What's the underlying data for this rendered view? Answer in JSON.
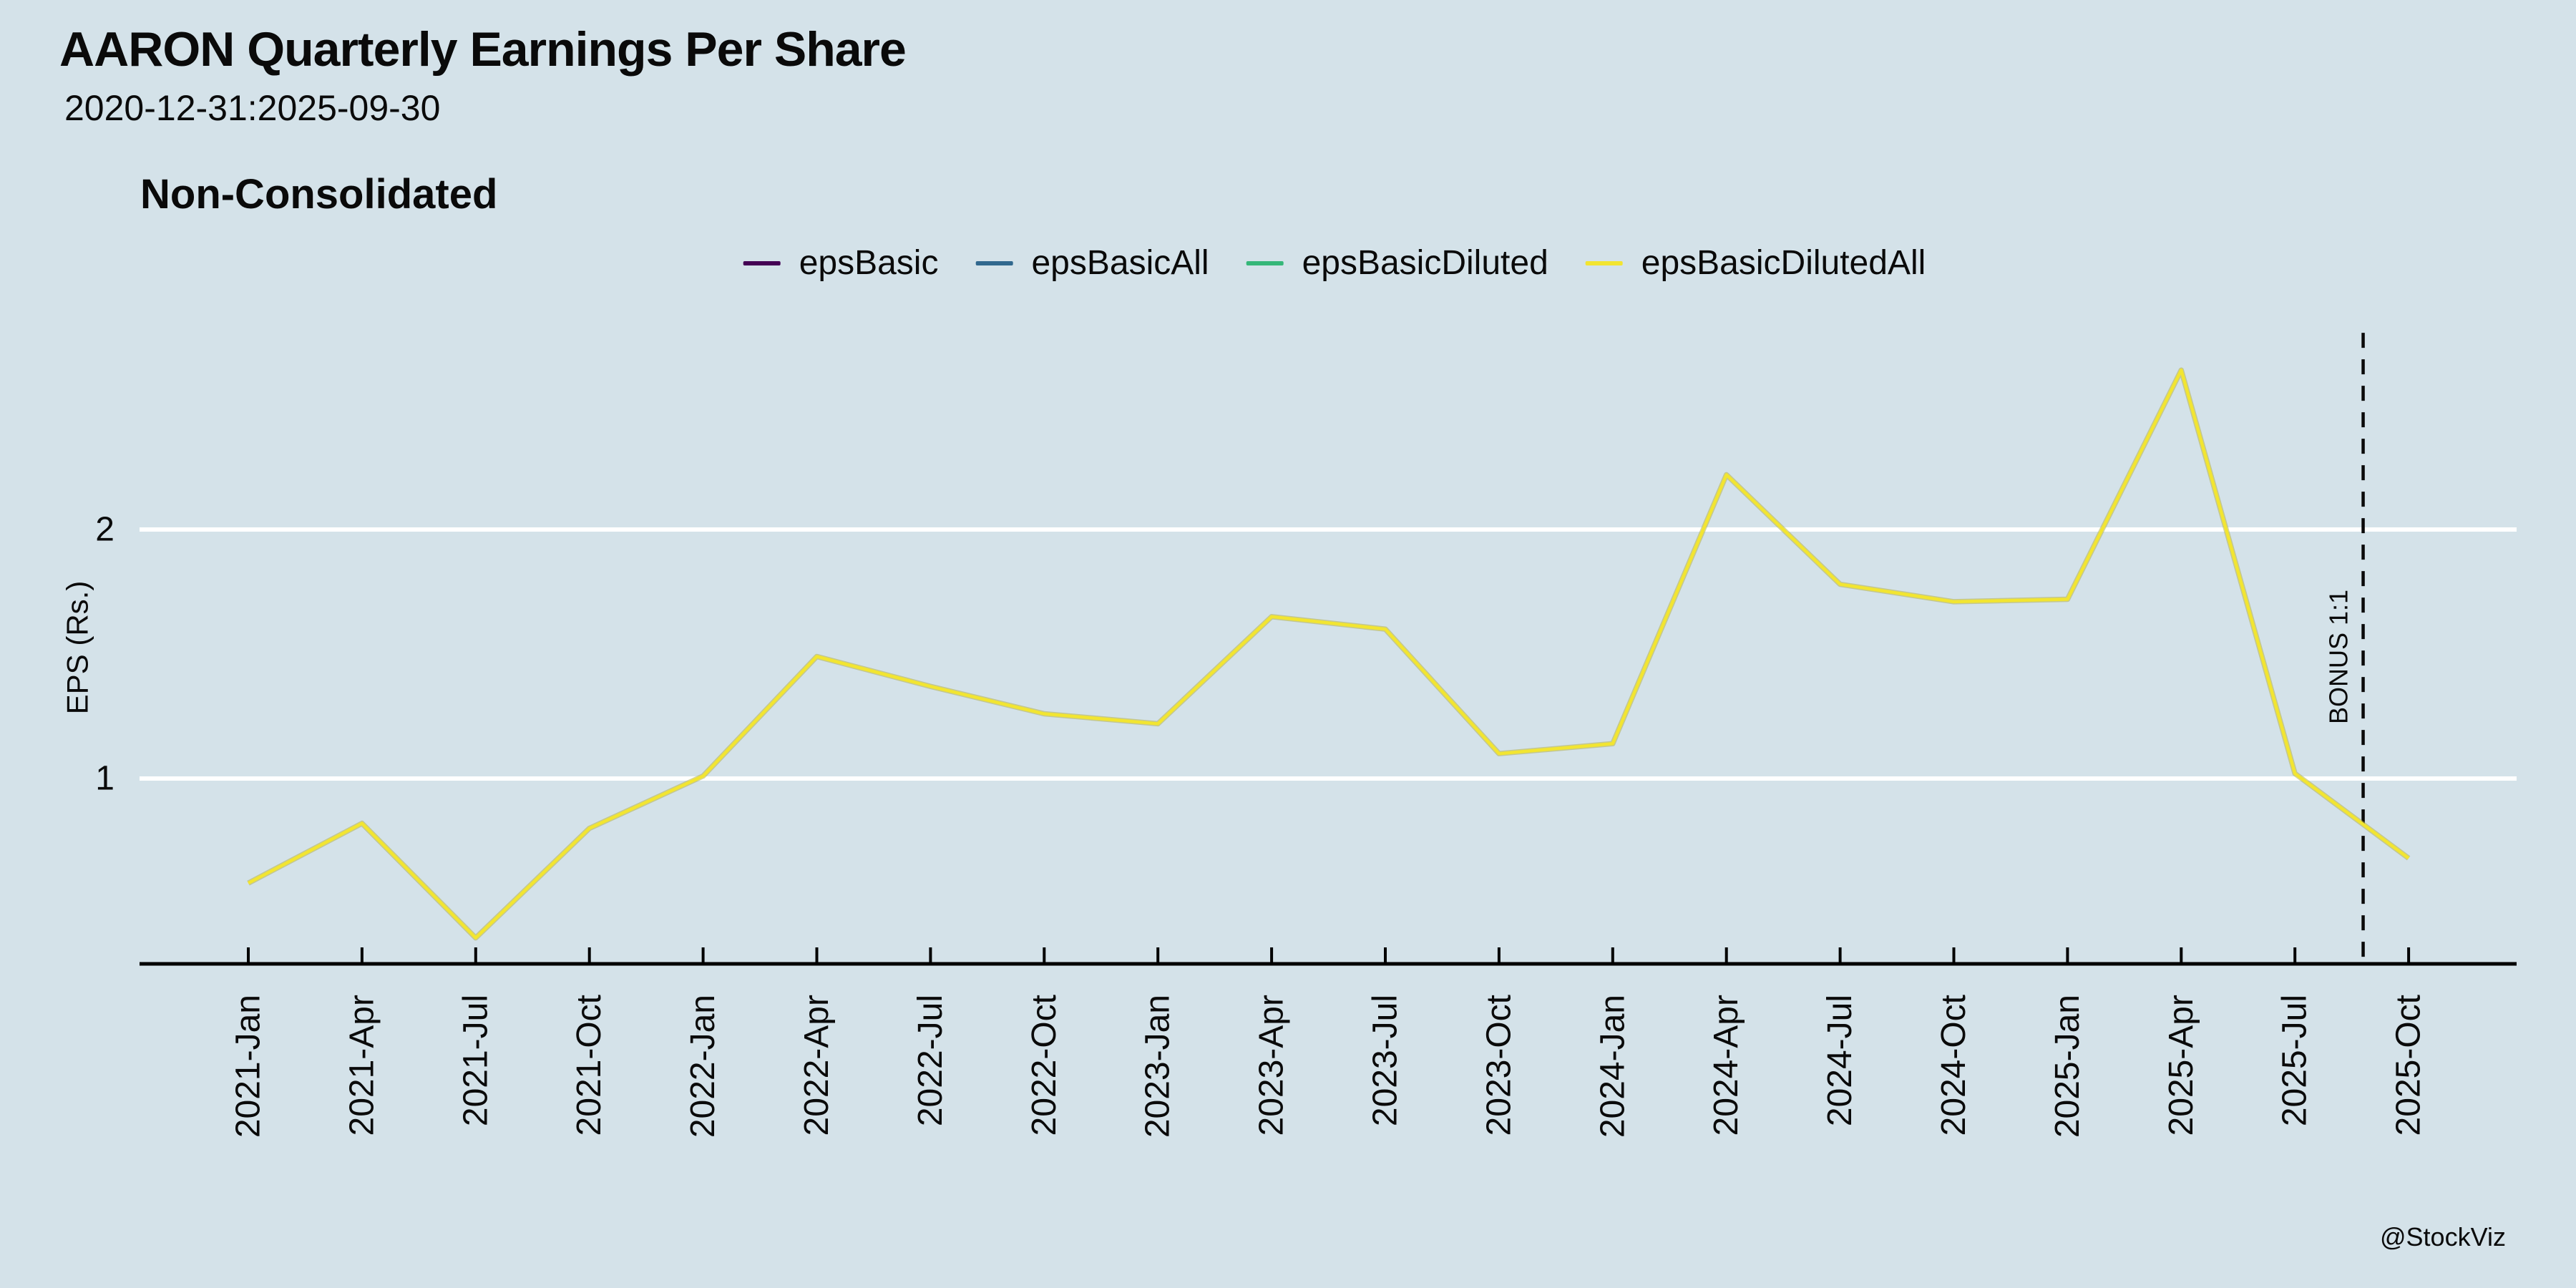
{
  "title": "AARON Quarterly Earnings Per Share",
  "subtitle": "2020-12-31:2025-09-30",
  "panel_title": "Non-Consolidated",
  "watermark": "@StockViz",
  "colors": {
    "background": "#d4e2e9",
    "gridline": "#ffffff",
    "axis": "#000000",
    "annotation_line": "#0a0a0a"
  },
  "chart_data": {
    "type": "line",
    "title": "Non-Consolidated",
    "xlabel": "",
    "ylabel": "EPS (Rs.)",
    "categories": [
      "2021-Jan",
      "2021-Apr",
      "2021-Jul",
      "2021-Oct",
      "2022-Jan",
      "2022-Apr",
      "2022-Jul",
      "2022-Oct",
      "2023-Jan",
      "2023-Apr",
      "2023-Jul",
      "2023-Oct",
      "2024-Jan",
      "2024-Apr",
      "2024-Jul",
      "2024-Oct",
      "2025-Jan",
      "2025-Apr",
      "2025-Jul",
      "2025-Oct"
    ],
    "series": [
      {
        "name": "epsBasic",
        "color": "#440154"
      },
      {
        "name": "epsBasicAll",
        "color": "#31688e"
      },
      {
        "name": "epsBasicDiluted",
        "color": "#35b779"
      },
      {
        "name": "epsBasicDilutedAll",
        "color": "#f2e531",
        "values": [
          0.58,
          0.82,
          0.36,
          0.8,
          1.01,
          1.49,
          1.37,
          1.26,
          1.22,
          1.65,
          1.6,
          1.1,
          1.14,
          2.22,
          1.78,
          1.71,
          1.72,
          2.64,
          1.02,
          0.68
        ]
      }
    ],
    "y_ticks": [
      1,
      2
    ],
    "ylim": [
      0.26,
      3.55
    ],
    "grid": "horizontal white lines at y ticks",
    "legend_position": "top-center",
    "annotation": {
      "label": "BONUS 1:1",
      "style": "dashed-vertical",
      "x_index": 18.6,
      "y_top_value": 2.79
    }
  }
}
